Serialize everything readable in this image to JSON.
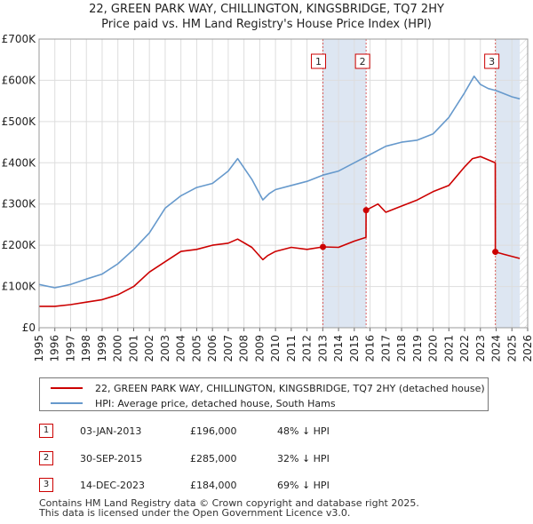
{
  "chart_data": {
    "type": "line",
    "title": "22, GREEN PARK WAY, CHILLINGTON, KINGSBRIDGE, TQ7 2HY",
    "subtitle": "Price paid vs. HM Land Registry's House Price Index (HPI)",
    "xlim": [
      1995,
      2026
    ],
    "ylim": [
      0,
      700000
    ],
    "x_ticks": [
      "1995",
      "1996",
      "1997",
      "1998",
      "1999",
      "2000",
      "2001",
      "2002",
      "2003",
      "2004",
      "2005",
      "2006",
      "2007",
      "2008",
      "2009",
      "2010",
      "2011",
      "2012",
      "2013",
      "2014",
      "2015",
      "2016",
      "2017",
      "2018",
      "2019",
      "2020",
      "2021",
      "2022",
      "2023",
      "2024",
      "2025",
      "2026"
    ],
    "y_ticks": [
      "£0",
      "£100K",
      "£200K",
      "£300K",
      "£400K",
      "£500K",
      "£600K",
      "£700K"
    ],
    "colors": {
      "property": "#cc0000",
      "hpi": "#6699cc",
      "band": "#dde6f2",
      "grid": "#dddddd"
    },
    "series": [
      {
        "name": "22, GREEN PARK WAY, CHILLINGTON, KINGSBRIDGE, TQ7 2HY (detached house)",
        "x": [
          1995.0,
          1996.0,
          1997.0,
          1998.0,
          1999.0,
          2000.0,
          2001.0,
          2002.0,
          2003.0,
          2004.0,
          2005.0,
          2006.0,
          2007.0,
          2007.6,
          2008.5,
          2009.2,
          2009.5,
          2010.0,
          2011.0,
          2012.0,
          2013.01,
          2014.0,
          2015.0,
          2015.74,
          2015.75,
          2016.5,
          2017.0,
          2018.0,
          2019.0,
          2020.0,
          2021.0,
          2022.0,
          2022.5,
          2023.0,
          2023.94,
          2023.95,
          2024.5,
          2025.5
        ],
        "values": [
          52000,
          52000,
          56000,
          62000,
          68000,
          80000,
          100000,
          135000,
          160000,
          185000,
          190000,
          200000,
          205000,
          215000,
          195000,
          165000,
          175000,
          185000,
          195000,
          190000,
          196000,
          195000,
          210000,
          219000,
          285000,
          300000,
          280000,
          295000,
          310000,
          330000,
          345000,
          390000,
          410000,
          415000,
          400000,
          184000,
          178000,
          168000
        ]
      },
      {
        "name": "HPI: Average price, detached house, South Hams",
        "x": [
          1995.0,
          1996.0,
          1997.0,
          1998.0,
          1999.0,
          2000.0,
          2001.0,
          2002.0,
          2003.0,
          2004.0,
          2005.0,
          2006.0,
          2007.0,
          2007.6,
          2008.5,
          2009.2,
          2009.6,
          2010.0,
          2011.0,
          2012.0,
          2013.0,
          2014.0,
          2015.0,
          2016.0,
          2017.0,
          2018.0,
          2019.0,
          2020.0,
          2021.0,
          2022.0,
          2022.6,
          2023.0,
          2023.5,
          2024.0,
          2025.0,
          2025.5
        ],
        "values": [
          105000,
          97000,
          105000,
          118000,
          130000,
          155000,
          190000,
          230000,
          290000,
          320000,
          340000,
          350000,
          380000,
          410000,
          360000,
          310000,
          325000,
          335000,
          345000,
          355000,
          370000,
          380000,
          400000,
          420000,
          440000,
          450000,
          455000,
          470000,
          510000,
          570000,
          610000,
          590000,
          580000,
          575000,
          560000,
          555000
        ]
      }
    ],
    "sales": [
      {
        "label": "1",
        "x": 2013.01,
        "value": 196000
      },
      {
        "label": "2",
        "x": 2015.75,
        "value": 285000
      },
      {
        "label": "3",
        "x": 2023.95,
        "value": 184000
      }
    ],
    "bands": [
      {
        "from": 2013.01,
        "to": 2015.75
      },
      {
        "from": 2023.95,
        "to": 2025.5
      }
    ]
  },
  "legend": {
    "property": "22, GREEN PARK WAY, CHILLINGTON, KINGSBRIDGE, TQ7 2HY (detached house)",
    "hpi": "HPI: Average price, detached house, South Hams"
  },
  "transactions": [
    {
      "num": "1",
      "date": "03-JAN-2013",
      "price": "£196,000",
      "pct": "48% ↓ HPI"
    },
    {
      "num": "2",
      "date": "30-SEP-2015",
      "price": "£285,000",
      "pct": "32% ↓ HPI"
    },
    {
      "num": "3",
      "date": "14-DEC-2023",
      "price": "£184,000",
      "pct": "69% ↓ HPI"
    }
  ],
  "footer": {
    "line1": "Contains HM Land Registry data © Crown copyright and database right 2025.",
    "line2": "This data is licensed under the Open Government Licence v3.0."
  }
}
